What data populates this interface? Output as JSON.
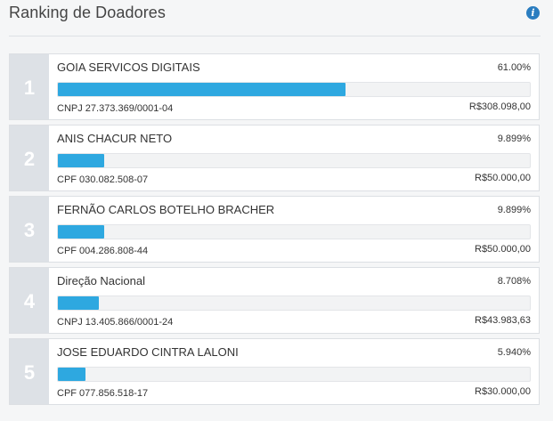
{
  "header": {
    "title": "Ranking de Doadores",
    "info_icon": "info-icon"
  },
  "colors": {
    "bar": "#2ea8e0",
    "rank_bg": "#dde1e6",
    "info": "#2a7dc0"
  },
  "donors": [
    {
      "rank": "1",
      "name": "GOIA SERVICOS DIGITAIS",
      "percent": "61.00%",
      "share": 61.0,
      "doc": "CNPJ 27.373.369/0001-04",
      "amount": "R$308.098,00"
    },
    {
      "rank": "2",
      "name": "ANIS CHACUR NETO",
      "percent": "9.899%",
      "share": 9.899,
      "doc": "CPF 030.082.508-07",
      "amount": "R$50.000,00"
    },
    {
      "rank": "3",
      "name": "FERNÃO CARLOS BOTELHO BRACHER",
      "percent": "9.899%",
      "share": 9.899,
      "doc": "CPF 004.286.808-44",
      "amount": "R$50.000,00"
    },
    {
      "rank": "4",
      "name": "Direção Nacional",
      "percent": "8.708%",
      "share": 8.708,
      "doc": "CNPJ 13.405.866/0001-24",
      "amount": "R$43.983,63"
    },
    {
      "rank": "5",
      "name": "JOSE EDUARDO CINTRA LALONI",
      "percent": "5.940%",
      "share": 5.94,
      "doc": "CPF 077.856.518-17",
      "amount": "R$30.000,00"
    }
  ]
}
